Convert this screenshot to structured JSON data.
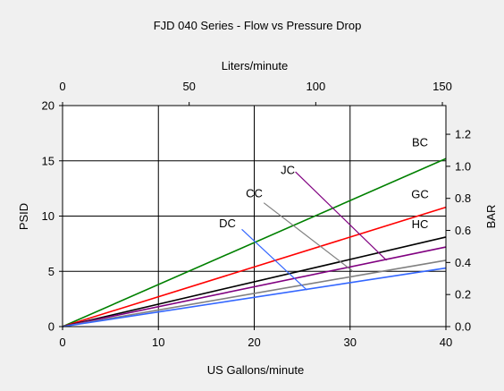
{
  "chart_data": {
    "type": "line",
    "title": "FJD 040 Series -  Flow vs Pressure Drop",
    "xlabel": "US Gallons/minute",
    "ylabel": "PSID",
    "x2label": "Liters/minute",
    "y2label": "BAR",
    "xlim": [
      0,
      40
    ],
    "ylim": [
      0,
      20
    ],
    "x2lim": [
      0,
      151.4
    ],
    "y2lim": [
      0,
      1.379
    ],
    "xticks": [
      0,
      10,
      20,
      30,
      40
    ],
    "yticks": [
      0,
      5,
      10,
      15,
      20
    ],
    "x2ticks": [
      0,
      50,
      100,
      150
    ],
    "y2ticks": [
      "0.0",
      "0.2",
      "0.4",
      "0.6",
      "0.8",
      "1.0",
      "1.2"
    ],
    "grid": true,
    "series": [
      {
        "name": "BC",
        "color": "#008000",
        "x": [
          0,
          40
        ],
        "y": [
          0,
          15.2
        ]
      },
      {
        "name": "GC",
        "color": "#ff0000",
        "x": [
          0,
          40
        ],
        "y": [
          0,
          10.8
        ]
      },
      {
        "name": "HC",
        "color": "#000000",
        "x": [
          0,
          40
        ],
        "y": [
          0,
          8.1
        ]
      },
      {
        "name": "JC",
        "color": "#800080",
        "x": [
          0,
          40
        ],
        "y": [
          0,
          7.2
        ]
      },
      {
        "name": "CC",
        "color": "#808080",
        "x": [
          0,
          40
        ],
        "y": [
          0,
          6.0
        ]
      },
      {
        "name": "DC",
        "color": "#3366ff",
        "x": [
          0,
          40
        ],
        "y": [
          0,
          5.3
        ]
      }
    ],
    "annotations": [
      {
        "text": "BC",
        "x": 37.3,
        "y": 16.3,
        "leader": null
      },
      {
        "text": "GC",
        "x": 37.3,
        "y": 11.6,
        "leader": null
      },
      {
        "text": "HC",
        "x": 37.3,
        "y": 8.9,
        "leader": null
      },
      {
        "text": "JC",
        "x": 23.5,
        "y": 13.8,
        "leader": [
          24.3,
          14.0,
          33.8,
          6.0
        ]
      },
      {
        "text": "CC",
        "x": 20.0,
        "y": 11.7,
        "leader": [
          21.0,
          11.2,
          30.3,
          5.0
        ]
      },
      {
        "text": "DC",
        "x": 17.2,
        "y": 9.0,
        "leader": [
          18.7,
          8.8,
          25.5,
          3.3
        ]
      }
    ]
  }
}
